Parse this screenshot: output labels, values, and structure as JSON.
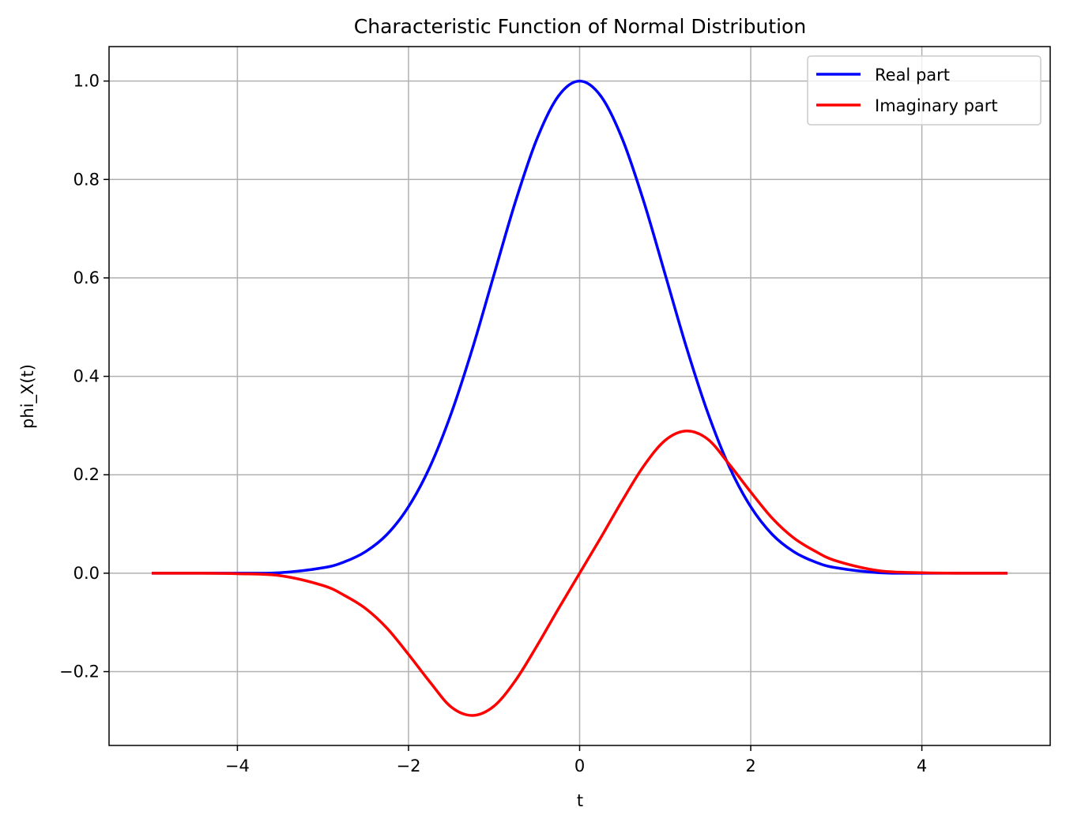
{
  "chart_data": {
    "type": "line",
    "title": "Characteristic Function of Normal Distribution",
    "xlabel": "t",
    "ylabel": "phi_X(t)",
    "xlim": [
      -5.5,
      5.5
    ],
    "ylim": [
      -0.35,
      1.07
    ],
    "xticks": [
      -4,
      -2,
      0,
      2,
      4
    ],
    "xtick_labels": [
      "−4",
      "−2",
      "0",
      "2",
      "4"
    ],
    "yticks": [
      -0.2,
      0.0,
      0.2,
      0.4,
      0.6,
      0.8,
      1.0
    ],
    "ytick_labels": [
      "−0.2",
      "0.0",
      "0.2",
      "0.4",
      "0.6",
      "0.8",
      "1.0"
    ],
    "grid": true,
    "legend_position": "top-right",
    "x": [
      -5.0,
      -4.5,
      -4.0,
      -3.5,
      -3.0,
      -2.75,
      -2.5,
      -2.25,
      -2.0,
      -1.75,
      -1.5,
      -1.25,
      -1.0,
      -0.75,
      -0.5,
      -0.25,
      0.0,
      0.25,
      0.5,
      0.75,
      1.0,
      1.25,
      1.5,
      1.75,
      2.0,
      2.25,
      2.5,
      2.75,
      3.0,
      3.5,
      4.0,
      4.5,
      5.0
    ],
    "series": [
      {
        "name": "Real part",
        "color": "#0000ff",
        "values": [
          0.0,
          0.0,
          0.0,
          0.001,
          0.011,
          0.023,
          0.044,
          0.079,
          0.135,
          0.216,
          0.325,
          0.458,
          0.607,
          0.755,
          0.882,
          0.969,
          1.0,
          0.969,
          0.882,
          0.755,
          0.607,
          0.458,
          0.325,
          0.216,
          0.135,
          0.079,
          0.044,
          0.023,
          0.011,
          0.001,
          0.0,
          0.0,
          0.0
        ]
      },
      {
        "name": "Imaginary part",
        "color": "#ff0000",
        "values": [
          0.0,
          -0.0,
          -0.001,
          -0.005,
          -0.025,
          -0.045,
          -0.072,
          -0.112,
          -0.165,
          -0.221,
          -0.272,
          -0.289,
          -0.27,
          -0.218,
          -0.148,
          -0.073,
          0.0,
          0.073,
          0.148,
          0.218,
          0.27,
          0.289,
          0.272,
          0.221,
          0.165,
          0.112,
          0.072,
          0.045,
          0.025,
          0.005,
          0.001,
          0.0,
          0.0
        ]
      }
    ]
  }
}
